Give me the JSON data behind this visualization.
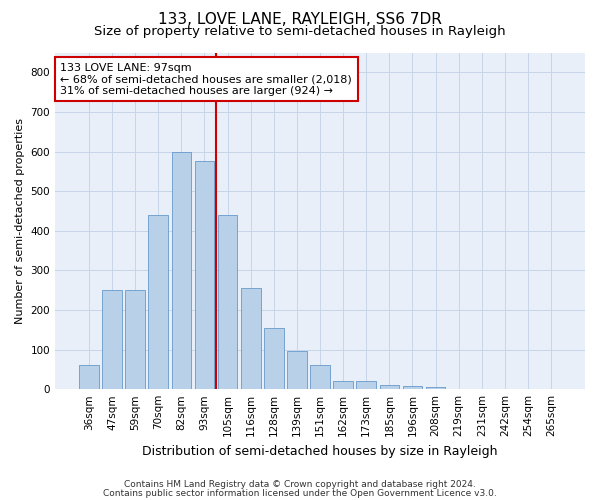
{
  "title": "133, LOVE LANE, RAYLEIGH, SS6 7DR",
  "subtitle": "Size of property relative to semi-detached houses in Rayleigh",
  "xlabel": "Distribution of semi-detached houses by size in Rayleigh",
  "ylabel": "Number of semi-detached properties",
  "categories": [
    "36sqm",
    "47sqm",
    "59sqm",
    "70sqm",
    "82sqm",
    "93sqm",
    "105sqm",
    "116sqm",
    "128sqm",
    "139sqm",
    "151sqm",
    "162sqm",
    "173sqm",
    "185sqm",
    "196sqm",
    "208sqm",
    "219sqm",
    "231sqm",
    "242sqm",
    "254sqm",
    "265sqm"
  ],
  "values": [
    60,
    250,
    250,
    440,
    600,
    575,
    440,
    255,
    155,
    97,
    60,
    20,
    20,
    10,
    7,
    5,
    0,
    0,
    0,
    0,
    0
  ],
  "bar_color": "#b8d0e8",
  "bar_edgecolor": "#6699cc",
  "vline_color": "#cc0000",
  "vline_x": 5.5,
  "annotation_text_line1": "133 LOVE LANE: 97sqm",
  "annotation_text_line2": "← 68% of semi-detached houses are smaller (2,018)",
  "annotation_text_line3": "31% of semi-detached houses are larger (924) →",
  "annotation_box_color": "#ffffff",
  "annotation_border_color": "#cc0000",
  "ylim": [
    0,
    850
  ],
  "yticks": [
    0,
    100,
    200,
    300,
    400,
    500,
    600,
    700,
    800
  ],
  "grid_color": "#c5d5e8",
  "background_color": "#e8eff8",
  "footnote_line1": "Contains HM Land Registry data © Crown copyright and database right 2024.",
  "footnote_line2": "Contains public sector information licensed under the Open Government Licence v3.0.",
  "title_fontsize": 11,
  "subtitle_fontsize": 9.5,
  "xlabel_fontsize": 9,
  "ylabel_fontsize": 8,
  "tick_fontsize": 7.5,
  "annotation_fontsize": 8,
  "footnote_fontsize": 6.5
}
